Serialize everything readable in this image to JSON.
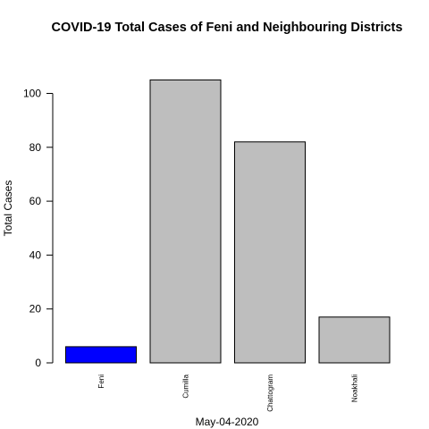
{
  "chart_data": {
    "type": "bar",
    "title": "COVID-19 Total Cases of Feni and Neighbouring Districts",
    "xlabel": "May-04-2020",
    "ylabel": "Total Cases",
    "categories": [
      "Feni",
      "Cumilla",
      "Chattogram",
      "Noakhali"
    ],
    "values": [
      6,
      105,
      82,
      17
    ],
    "bar_colors": [
      "#0000ff",
      "#bebebe",
      "#bebebe",
      "#bebebe"
    ],
    "bar_border_color": "#000000",
    "ylim": [
      0,
      105
    ],
    "yticks": [
      0,
      20,
      40,
      60,
      80,
      100
    ],
    "grid": false,
    "legend": "none"
  }
}
